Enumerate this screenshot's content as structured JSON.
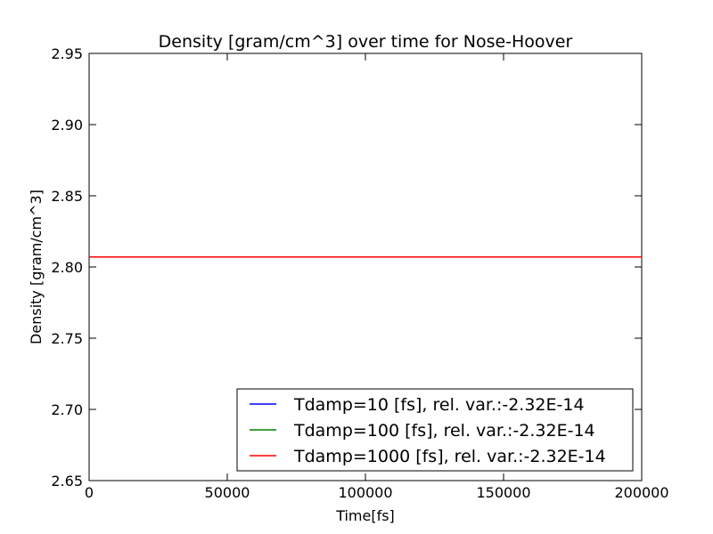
{
  "chart_data": {
    "type": "line",
    "title": "Density [gram/cm^3] over time for Nose-Hoover",
    "xlabel": "Time[fs]",
    "ylabel": "Density [gram/cm^3]",
    "xlim": [
      0,
      200000
    ],
    "ylim": [
      2.65,
      2.95
    ],
    "xticks": [
      0,
      50000,
      100000,
      150000,
      200000
    ],
    "xtick_labels": [
      "0",
      "50000",
      "100000",
      "150000",
      "200000"
    ],
    "yticks": [
      2.65,
      2.7,
      2.75,
      2.8,
      2.85,
      2.9,
      2.95
    ],
    "ytick_labels": [
      "2.65",
      "2.70",
      "2.75",
      "2.80",
      "2.85",
      "2.90",
      "2.95"
    ],
    "grid": false,
    "legend_position": "lower-right",
    "series": [
      {
        "name": "Tdamp=10 [fs], rel. var.:-2.32E-14",
        "color": "#0000ff",
        "x": [
          0,
          200000
        ],
        "y": [
          2.807,
          2.807
        ]
      },
      {
        "name": "Tdamp=100 [fs], rel. var.:-2.32E-14",
        "color": "#008000",
        "x": [
          0,
          200000
        ],
        "y": [
          2.807,
          2.807
        ]
      },
      {
        "name": "Tdamp=1000 [fs], rel. var.:-2.32E-14",
        "color": "#ff0000",
        "x": [
          0,
          200000
        ],
        "y": [
          2.807,
          2.807
        ]
      }
    ]
  }
}
